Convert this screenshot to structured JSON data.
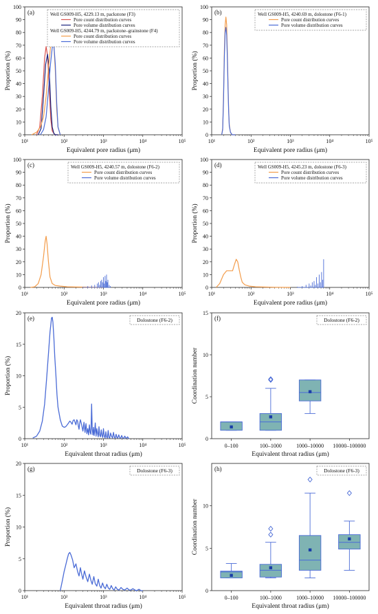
{
  "panel_labels": [
    "(a)",
    "(b)",
    "(c)",
    "(d)",
    "(e)",
    "(f)",
    "(g)",
    "(h)"
  ],
  "chart_data": [
    {
      "type": "line",
      "title": "(a)",
      "xlabel": "Equivalent pore radius (μm)",
      "ylabel": "Proportion (%)",
      "xscale": "log",
      "xlim": [
        10,
        100000
      ],
      "ylim": [
        0,
        100
      ],
      "xticks": [
        "10¹",
        "10²",
        "10³",
        "10⁴",
        "10⁵"
      ],
      "yticks": [
        0,
        10,
        20,
        30,
        40,
        50,
        60,
        70,
        80,
        90,
        100
      ],
      "legend": {
        "placement": "top-right",
        "groups": [
          {
            "header": "Well GS009-H5, 4229.13 m, packstone (F3)",
            "entries": [
              "Pore count distribution curves",
              "Pore volume distribution curves"
            ]
          },
          {
            "header": "Well GS009-H5, 4244.79 m, packstone–grainstone (F4)",
            "entries": [
              "Pore count distribution curves",
              "Pore volume distribution curves"
            ]
          }
        ]
      },
      "series": [
        {
          "name": "Pore count distribution curves",
          "color": "#d9534f",
          "width": 1.2,
          "x": [
            20,
            24,
            28,
            32,
            35,
            38,
            42,
            46,
            50,
            55,
            60,
            70
          ],
          "y": [
            0,
            6,
            30,
            60,
            69,
            62,
            35,
            12,
            3,
            1,
            0,
            0
          ]
        },
        {
          "name": "Pore volume distribution curves",
          "color": "#1a237e",
          "width": 1.2,
          "x": [
            22,
            26,
            30,
            34,
            38,
            42,
            46,
            50,
            55,
            60,
            70
          ],
          "y": [
            0,
            5,
            30,
            55,
            63,
            50,
            22,
            6,
            1,
            0,
            0
          ]
        },
        {
          "name": "Pore count distribution curves",
          "color": "#f39c4a",
          "width": 1.2,
          "x": [
            15,
            20,
            25,
            30,
            35,
            40,
            45,
            50,
            55,
            60,
            65,
            70,
            80
          ],
          "y": [
            0,
            2,
            6,
            14,
            30,
            52,
            68,
            76,
            70,
            50,
            20,
            6,
            0
          ]
        },
        {
          "name": "Pore volume distribution curves",
          "color": "#4a6bd6",
          "width": 1.2,
          "x": [
            25,
            30,
            35,
            40,
            45,
            50,
            55,
            60,
            65,
            70,
            80
          ],
          "y": [
            0,
            4,
            14,
            35,
            55,
            68,
            70,
            55,
            25,
            6,
            0
          ]
        }
      ]
    },
    {
      "type": "line",
      "title": "(b)",
      "xlabel": "Equivalent pore radius (μm)",
      "ylabel": "Proportion (%)",
      "xscale": "log",
      "xlim": [
        10,
        100000
      ],
      "ylim": [
        0,
        100
      ],
      "xticks": [
        "10¹",
        "10²",
        "10³",
        "10⁴",
        "10⁵"
      ],
      "yticks": [
        0,
        10,
        20,
        30,
        40,
        50,
        60,
        70,
        80,
        90,
        100
      ],
      "legend": {
        "placement": "top-right",
        "groups": [
          {
            "header": "Well GS009-H5, 4240.69 m, dolostone (F6-1)",
            "entries": [
              "Pore count distribution curves",
              "Pore volume distribution curves"
            ]
          }
        ]
      },
      "series": [
        {
          "name": "Pore count distribution curves",
          "color": "#f39c4a",
          "width": 1.2,
          "x": [
            18,
            19,
            20,
            21,
            22,
            23,
            24,
            25,
            26,
            27,
            28,
            30,
            33,
            40
          ],
          "y": [
            0,
            5,
            30,
            65,
            86,
            92,
            86,
            65,
            40,
            20,
            8,
            2,
            0,
            0
          ]
        },
        {
          "name": "Pore volume distribution curves",
          "color": "#4a6bd6",
          "width": 1.2,
          "x": [
            18,
            19,
            20,
            21,
            22,
            23,
            24,
            25,
            26,
            27,
            28,
            30,
            33,
            40
          ],
          "y": [
            0,
            4,
            26,
            60,
            80,
            84,
            78,
            60,
            36,
            18,
            7,
            2,
            0,
            0
          ]
        }
      ]
    },
    {
      "type": "line",
      "title": "(c)",
      "xlabel": "Equivalent pore radius (μm)",
      "ylabel": "Proportion (%)",
      "xscale": "log",
      "xlim": [
        10,
        100000
      ],
      "ylim": [
        0,
        100
      ],
      "xticks": [
        "10¹",
        "10²",
        "10³",
        "10⁴",
        "10⁵"
      ],
      "yticks": [
        0,
        10,
        20,
        30,
        40,
        50,
        60,
        70,
        80,
        90,
        100
      ],
      "legend": {
        "placement": "top-right",
        "groups": [
          {
            "header": "Well GS009-H5, 4240.57 m, dolostone (F6-2)",
            "entries": [
              "Pore count distribution curves",
              "Pore volume distribution curves"
            ]
          }
        ]
      },
      "series": [
        {
          "name": "Pore count distribution curves",
          "color": "#f39c4a",
          "width": 1.2,
          "x": [
            14,
            18,
            22,
            26,
            30,
            33,
            35,
            37,
            40,
            44,
            50,
            60,
            80,
            120,
            200,
            400,
            1000
          ],
          "y": [
            0,
            0.5,
            3,
            10,
            24,
            36,
            40,
            34,
            20,
            8,
            3,
            1.5,
            1,
            0.5,
            0.3,
            0.2,
            0
          ]
        },
        {
          "name": "Pore volume distribution curves",
          "color": "#4a6bd6",
          "width": 1.2,
          "spikes": true,
          "x": [
            300,
            400,
            500,
            600,
            700,
            750,
            800,
            850,
            900,
            950,
            1000,
            1050,
            1100,
            1150,
            1200,
            1250,
            1300,
            1400,
            1500
          ],
          "y": [
            0.5,
            1,
            1.5,
            2,
            3,
            4,
            2,
            5,
            6,
            4,
            8,
            3,
            9,
            5,
            10,
            4,
            6,
            2,
            1
          ]
        }
      ]
    },
    {
      "type": "line",
      "title": "(d)",
      "xlabel": "Equivalent pore radius (μm)",
      "ylabel": "Proportion (%)",
      "xscale": "log",
      "xlim": [
        10,
        100000
      ],
      "ylim": [
        0,
        100
      ],
      "xticks": [
        "10¹",
        "10²",
        "10³",
        "10⁴",
        "10⁵"
      ],
      "yticks": [
        0,
        10,
        20,
        30,
        40,
        50,
        60,
        70,
        80,
        90,
        100
      ],
      "legend": {
        "placement": "top-right",
        "groups": [
          {
            "header": "Well GS009-H5, 4245.23 m, dolostone (F6-3)",
            "entries": [
              "Pore count distribution curves",
              "Pore volume distribution curves"
            ]
          }
        ]
      },
      "series": [
        {
          "name": "Pore count distribution curves",
          "color": "#f39c4a",
          "width": 1.2,
          "x": [
            13,
            16,
            20,
            24,
            28,
            34,
            38,
            42,
            46,
            50,
            55,
            60,
            70,
            90,
            130,
            200,
            400,
            1000
          ],
          "y": [
            0,
            3,
            10,
            13,
            13,
            13,
            18,
            22,
            20,
            14,
            8,
            4,
            2,
            1,
            0.5,
            0.3,
            0.1,
            0
          ]
        },
        {
          "name": "Pore volume distribution curves",
          "color": "#4a6bd6",
          "width": 1.2,
          "spikes": true,
          "x": [
            1500,
            2000,
            2500,
            3000,
            3300,
            3600,
            4000,
            4300,
            4600,
            5000,
            5400,
            5800,
            6200,
            6600,
            7000
          ],
          "y": [
            0.5,
            1,
            2,
            3,
            1.5,
            4,
            5,
            2,
            8,
            3,
            10,
            4,
            12,
            6,
            22
          ]
        }
      ]
    },
    {
      "type": "line",
      "title": "(e)",
      "xlabel": "Equivalent throat radius (μm)",
      "ylabel": "Proportion (%)",
      "xscale": "log",
      "xlim": [
        10,
        100000
      ],
      "ylim": [
        0,
        20
      ],
      "xticks": [
        "10¹",
        "10²",
        "10³",
        "10⁴",
        "10⁵"
      ],
      "yticks": [
        0,
        5,
        10,
        15,
        20
      ],
      "legend": {
        "placement": "top-right",
        "groups": [
          {
            "header": "Dolostone (F6-2)",
            "entries": []
          }
        ]
      },
      "series": [
        {
          "name": "",
          "color": "#4a6bd6",
          "width": 1.3,
          "x": [
            16,
            20,
            24,
            28,
            32,
            36,
            40,
            44,
            48,
            50,
            52,
            55,
            58,
            62,
            66,
            70,
            80,
            90,
            100,
            110,
            120,
            130,
            140,
            150,
            160,
            170,
            180,
            190,
            200,
            210,
            220,
            230,
            240,
            250,
            260,
            280,
            300,
            320,
            340,
            360,
            380,
            400,
            420,
            440,
            460,
            480,
            500,
            520,
            540,
            560,
            580,
            600,
            620,
            650,
            680,
            710,
            740,
            770,
            800,
            840,
            880,
            920,
            960,
            1000,
            1050,
            1100,
            1150,
            1200,
            1260,
            1320,
            1380,
            1450,
            1520,
            1600,
            1700,
            1800,
            1900,
            2000,
            2100,
            2200,
            2300,
            2450,
            2600,
            2750,
            2900,
            3100,
            3300,
            3500,
            3700,
            3900,
            4100,
            4300,
            4500
          ],
          "y": [
            0.1,
            0.4,
            1.2,
            2.8,
            5.5,
            9.5,
            13.5,
            17,
            19.2,
            19.3,
            18.5,
            16,
            13,
            10,
            7,
            5,
            3,
            2,
            1.8,
            1.9,
            2.2,
            2.5,
            2.8,
            2.6,
            2.3,
            2.9,
            3.0,
            2.6,
            2.2,
            3.0,
            2.8,
            2.0,
            1.5,
            2.5,
            3.0,
            2.2,
            1.2,
            2.6,
            1.0,
            2.4,
            0.8,
            1.6,
            0.6,
            2.2,
            1.0,
            0.7,
            5.5,
            1.5,
            0.6,
            1.8,
            0.5,
            1.2,
            2.5,
            0.4,
            1.6,
            0.8,
            0.3,
            1.9,
            0.6,
            0.3,
            1.4,
            0.5,
            0.2,
            1.6,
            0.4,
            0.1,
            1.1,
            0.3,
            0.1,
            1.3,
            0.2,
            0.1,
            0.9,
            0.4,
            0.1,
            1.0,
            0.2,
            0.1,
            0.7,
            0.2,
            0.1,
            0.6,
            0.1,
            0.1,
            0.5,
            0.1,
            0.1,
            0.4,
            0.1,
            0.1,
            0.3,
            0.1,
            0
          ]
        }
      ]
    },
    {
      "type": "box",
      "title": "(f)",
      "xlabel": "Equivalent throat radius (μm)",
      "ylabel": "Coordination number",
      "ylim": [
        0,
        15
      ],
      "yticks": [
        0,
        5,
        10,
        15
      ],
      "categories": [
        "0–100",
        "100–1000",
        "1000–10000",
        "10000–100000"
      ],
      "legend": {
        "placement": "top-right",
        "groups": [
          {
            "header": "Dolostone (F6-2)",
            "entries": []
          }
        ]
      },
      "boxes": [
        {
          "category": "0–100",
          "min": 1,
          "q1": 1,
          "median": 2,
          "q3": 2,
          "max": 2,
          "mean": 1.4,
          "outliers": []
        },
        {
          "category": "100–1000",
          "min": 1,
          "q1": 1,
          "median": 2,
          "q3": 3,
          "max": 6,
          "mean": 2.6,
          "outliers": [
            7,
            7.1
          ]
        },
        {
          "category": "1000–10000",
          "min": 3,
          "q1": 4.5,
          "median": 5.5,
          "q3": 7,
          "max": 7,
          "mean": 5.6,
          "outliers": []
        },
        {
          "category": "10000–100000",
          "empty": true
        }
      ]
    },
    {
      "type": "line",
      "title": "(g)",
      "xlabel": "Equivalent throat radius (μm)",
      "ylabel": "Proportion (%)",
      "xscale": "log",
      "xlim": [
        10,
        100000
      ],
      "ylim": [
        0,
        20
      ],
      "xticks": [
        "10¹",
        "10²",
        "10³",
        "10⁴",
        "10⁵"
      ],
      "yticks": [
        0,
        5,
        10,
        15,
        20
      ],
      "legend": {
        "placement": "top-right",
        "groups": [
          {
            "header": "Dolostone (F6-3)",
            "entries": []
          }
        ]
      },
      "series": [
        {
          "name": "",
          "color": "#4a6bd6",
          "width": 1.3,
          "x": [
            80,
            90,
            100,
            110,
            120,
            130,
            140,
            150,
            165,
            180,
            200,
            220,
            240,
            260,
            280,
            300,
            330,
            360,
            400,
            440,
            480,
            520,
            570,
            620,
            680,
            740,
            800,
            870,
            950,
            1030,
            1120,
            1220,
            1330,
            1450,
            1580,
            1720,
            1880,
            2050,
            2250,
            2500,
            2800,
            3100,
            3500,
            4000,
            4500,
            5000,
            5600,
            6300,
            7000,
            8000,
            9000,
            10000
          ],
          "y": [
            0,
            1.5,
            3,
            4,
            5,
            5.8,
            6,
            5.6,
            4.8,
            3.6,
            4.2,
            3,
            2.3,
            3.6,
            2.6,
            1.8,
            3.1,
            2.2,
            1.4,
            2.6,
            1.6,
            1.0,
            2.2,
            1.1,
            0.7,
            1.8,
            0.8,
            0.4,
            1.2,
            0.6,
            0.3,
            1.0,
            0.4,
            0.2,
            0.8,
            0.3,
            0.1,
            0.6,
            0.2,
            0.1,
            0.5,
            0.2,
            0.1,
            0.4,
            0.1,
            0.1,
            0.3,
            0.1,
            0,
            0.2,
            0,
            0
          ]
        }
      ]
    },
    {
      "type": "box",
      "title": "(h)",
      "xlabel": "Equivalent throat radius (μm)",
      "ylabel": "Coordination number",
      "ylim": [
        0,
        15
      ],
      "yticks": [
        0,
        5,
        10
      ],
      "categories": [
        "0–100",
        "100–1000",
        "1000–10000",
        "10000–100000"
      ],
      "legend": {
        "placement": "top-right",
        "groups": [
          {
            "header": "Dolostone (F6-3)",
            "entries": []
          }
        ]
      },
      "boxes": [
        {
          "category": "0–100",
          "min": 1.5,
          "q1": 1.5,
          "median": 2.2,
          "q3": 2.3,
          "max": 3.2,
          "mean": 1.8,
          "outliers": []
        },
        {
          "category": "100–1000",
          "min": 1.5,
          "q1": 1.6,
          "median": 2.4,
          "q3": 3.1,
          "max": 5.7,
          "mean": 2.7,
          "outliers": [
            6.6,
            7.3
          ]
        },
        {
          "category": "1000–10000",
          "min": 1.5,
          "q1": 2.4,
          "median": 3.6,
          "q3": 6.5,
          "max": 11.5,
          "mean": 4.8,
          "outliers": [
            13.1
          ]
        },
        {
          "category": "10000–100000",
          "min": 2.4,
          "q1": 4.9,
          "median": 5.7,
          "q3": 6.6,
          "max": 8.2,
          "mean": 6.1,
          "outliers": [
            11.5
          ]
        }
      ]
    }
  ]
}
